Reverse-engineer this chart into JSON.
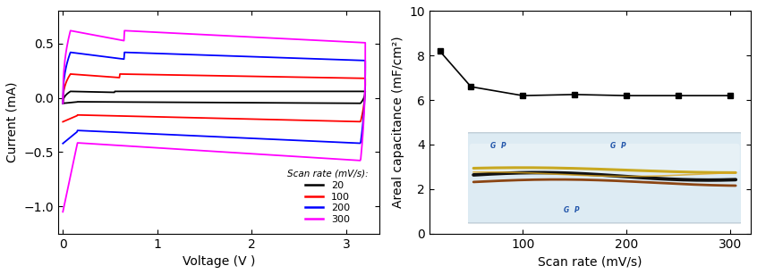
{
  "left_plot": {
    "xlabel": "Voltage (V )",
    "ylabel": "Current (mA)",
    "xlim": [
      -0.05,
      3.35
    ],
    "ylim": [
      -1.25,
      0.8
    ],
    "xticks": [
      0,
      1,
      2,
      3
    ],
    "yticks": [
      -1.0,
      -0.5,
      0.0,
      0.5
    ],
    "scan_rates": [
      20,
      100,
      200,
      300
    ],
    "colors": [
      "black",
      "red",
      "blue",
      "magenta"
    ],
    "legend_title": "Scan rate (mV/s):",
    "cv_params": {
      "20": {
        "fwd_peak": 0.06,
        "fwd_flat": 0.05,
        "bwd_flat": -0.05,
        "bwd_drop": -0.05,
        "v_peak": 0.55,
        "end_merge": 0.06
      },
      "100": {
        "fwd_peak": 0.22,
        "fwd_flat": 0.17,
        "bwd_flat": -0.22,
        "bwd_drop": -0.22,
        "v_peak": 0.6,
        "end_merge": 0.12
      },
      "200": {
        "fwd_peak": 0.42,
        "fwd_flat": 0.27,
        "bwd_flat": -0.42,
        "bwd_drop": -0.42,
        "v_peak": 0.65,
        "end_merge": 0.22
      },
      "300": {
        "fwd_peak": 0.62,
        "fwd_flat": 0.42,
        "bwd_flat": -0.58,
        "bwd_drop": -1.05,
        "v_peak": 0.65,
        "end_merge": 0.28
      }
    }
  },
  "right_plot": {
    "xlabel": "Scan rate (mV/s)",
    "ylabel": "Areal capacitance (mF/cm²)",
    "xlim": [
      10,
      320
    ],
    "ylim": [
      0,
      10
    ],
    "xticks": [
      100,
      200,
      300
    ],
    "yticks": [
      0,
      2,
      4,
      6,
      8,
      10
    ],
    "scan_rates": [
      20,
      50,
      100,
      150,
      200,
      250,
      300
    ],
    "capacitances": [
      8.2,
      6.6,
      6.2,
      6.25,
      6.2,
      6.2,
      6.2
    ],
    "marker": "s",
    "color": "black"
  }
}
